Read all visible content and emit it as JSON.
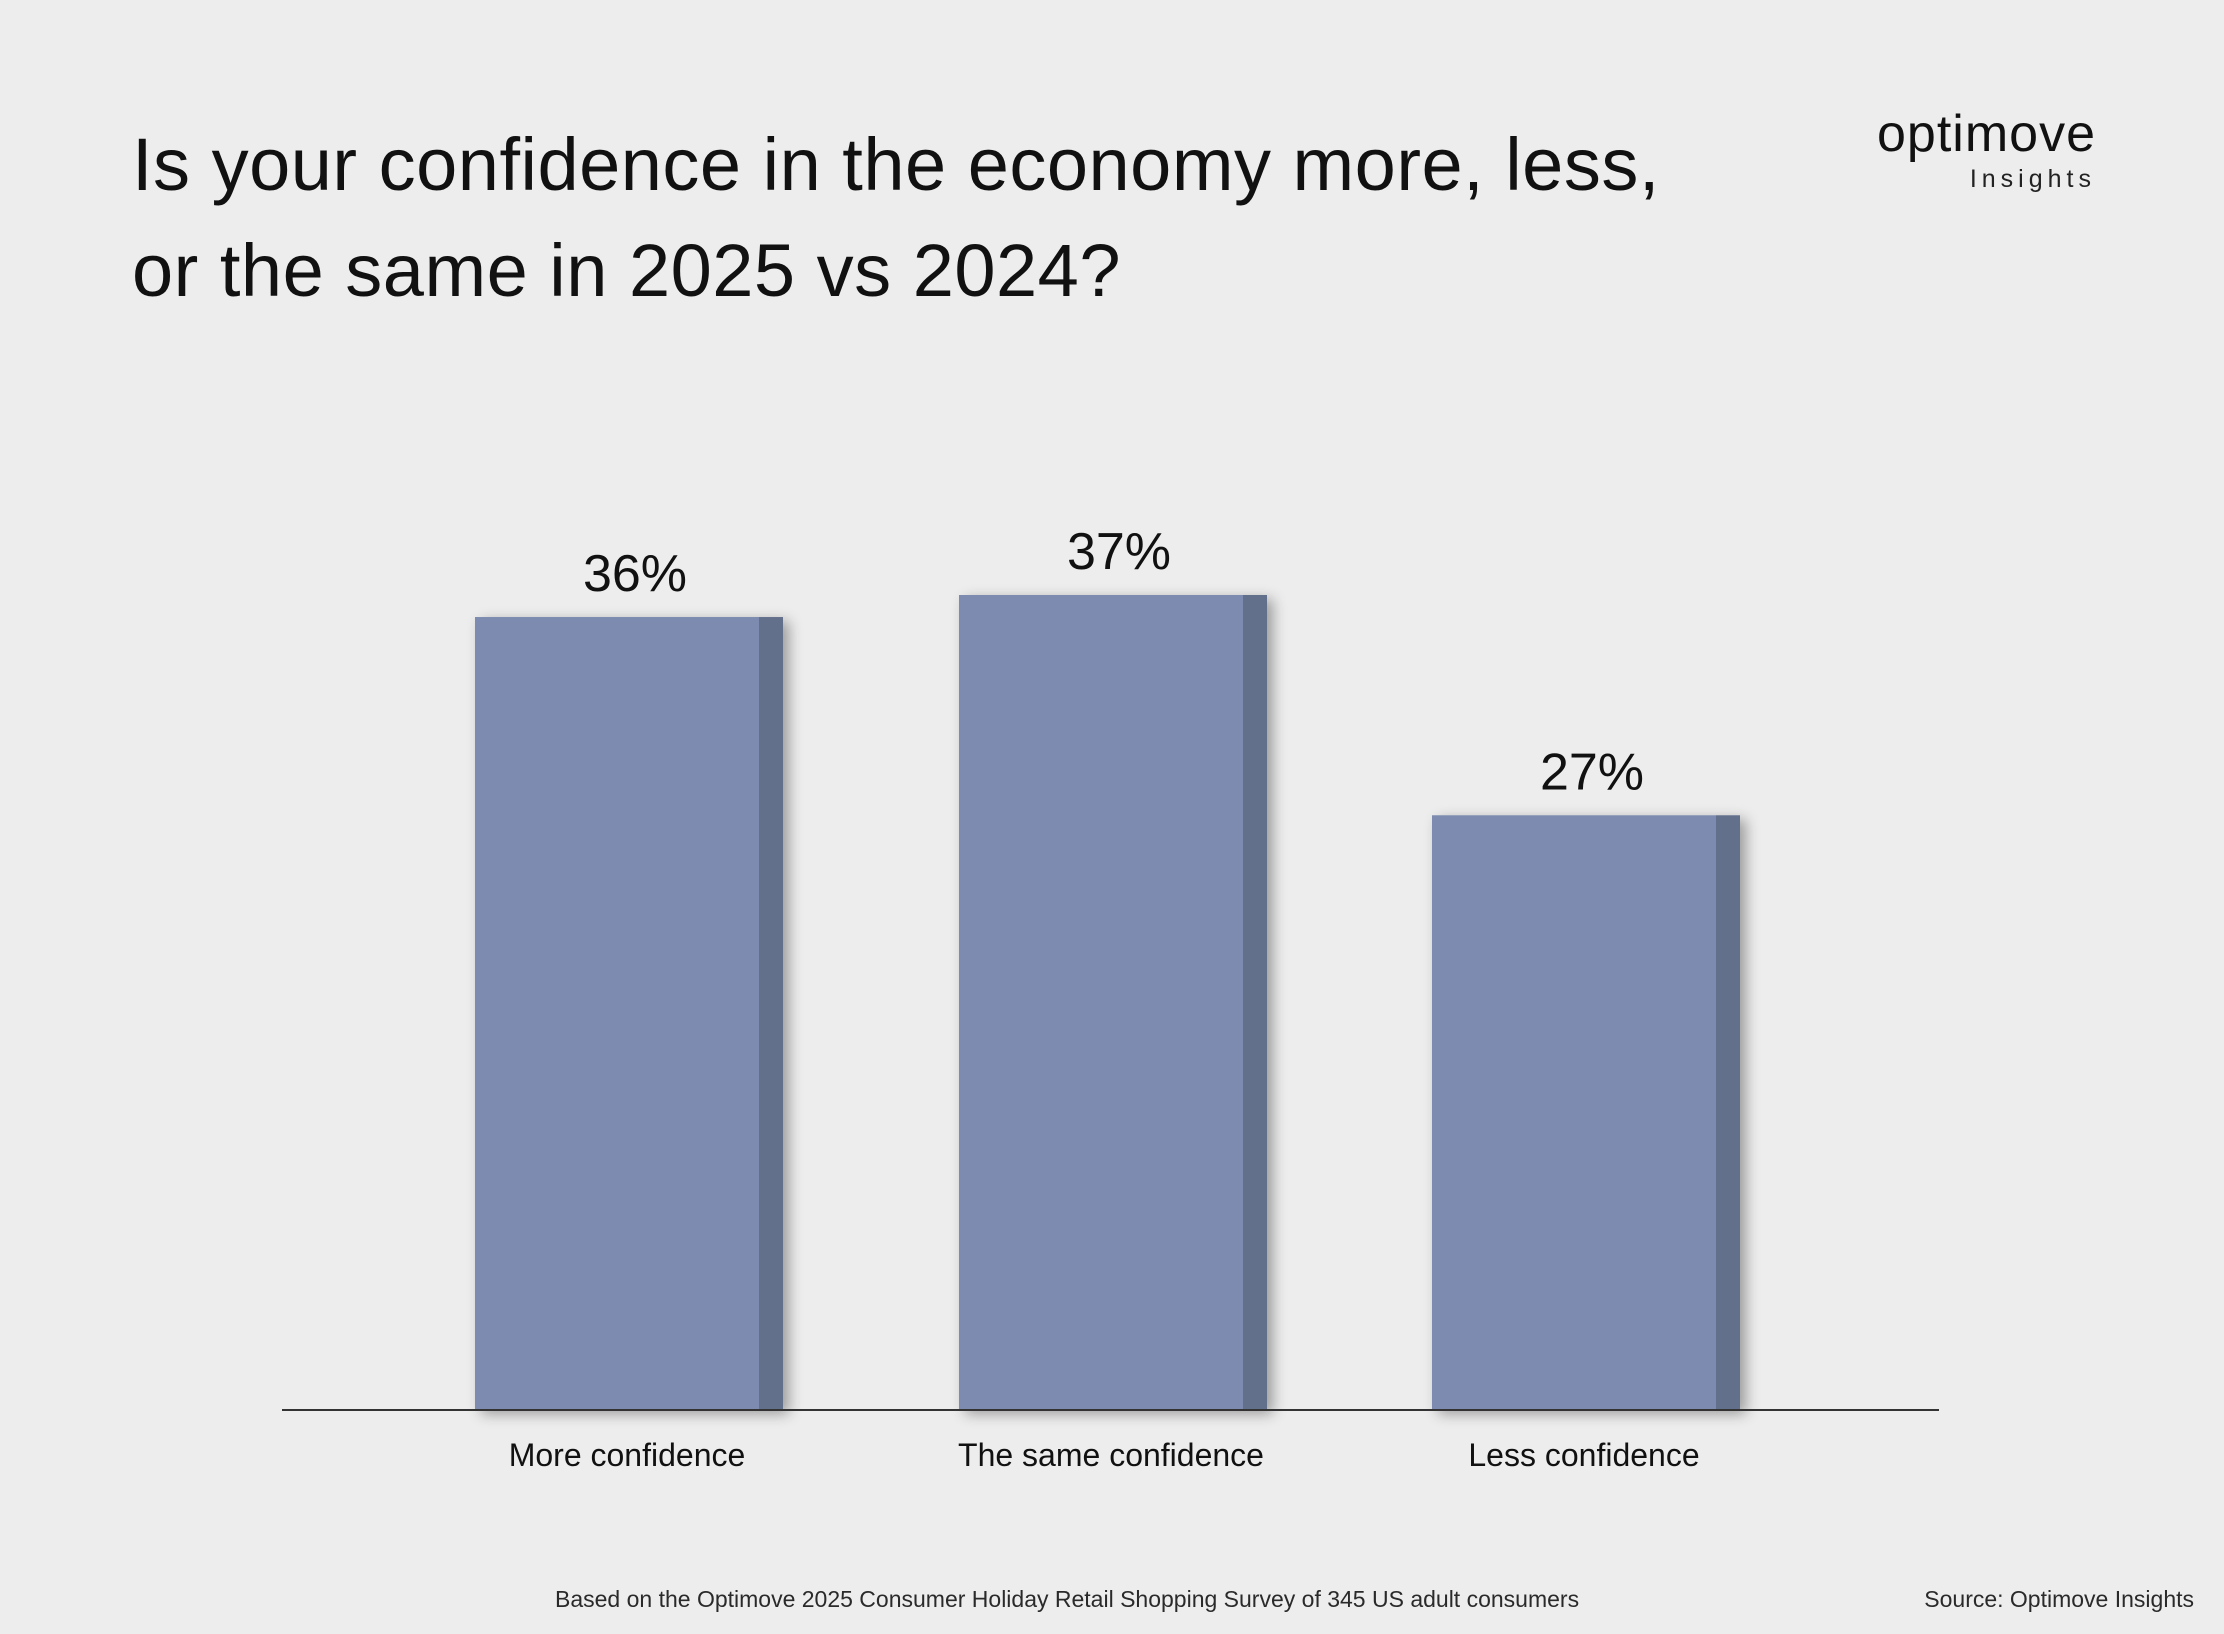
{
  "title": "Is your confidence in the economy more, less, or the same in 2025 vs 2024?",
  "logo": {
    "word": "optimove",
    "sub": "Insights"
  },
  "colors": {
    "bar_face": "#7b8baf",
    "bar_side": "#646f8c",
    "axis": "#333333",
    "background": "#ededed"
  },
  "chart_data": {
    "type": "bar",
    "title": "Is your confidence in the economy more, less, or the same in 2025 vs 2024?",
    "categories": [
      "More confidence",
      "The same confidence",
      "Less confidence"
    ],
    "values": [
      36,
      37,
      27
    ],
    "data_labels": [
      "36%",
      "37%",
      "27%"
    ],
    "xlabel": "",
    "ylabel": "",
    "ylim": [
      0,
      37
    ],
    "grid": false,
    "legend": "none"
  },
  "footnote": "Based on the Optimove 2025 Consumer Holiday Retail Shopping Survey of 345 US adult consumers",
  "source": "Source: Optimove Insights"
}
